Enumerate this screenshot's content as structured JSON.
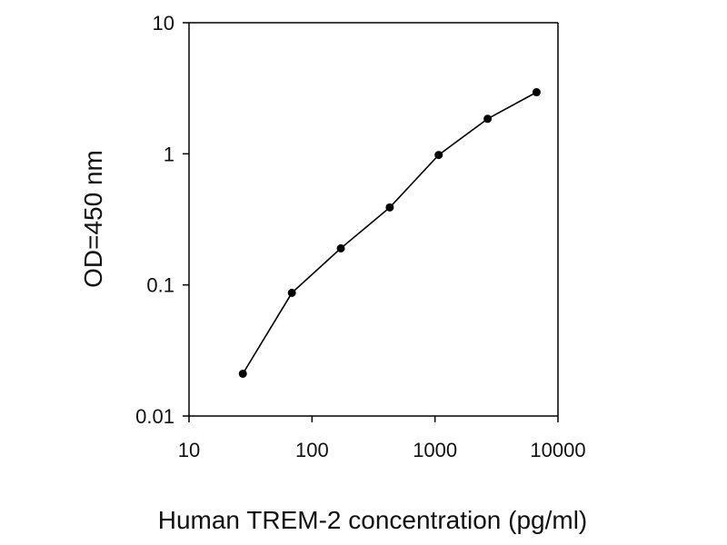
{
  "chart_data": {
    "type": "line",
    "title": "",
    "xlabel": "Human TREM-2 concentration (pg/ml)",
    "ylabel": "OD=450 nm",
    "xscale": "log",
    "yscale": "log",
    "xlim": [
      10,
      10000
    ],
    "ylim": [
      0.01,
      10
    ],
    "xticks": [
      10,
      100,
      1000,
      10000
    ],
    "xtick_labels": [
      "10",
      "100",
      "1000",
      "10000"
    ],
    "yticks": [
      0.01,
      0.1,
      1,
      10
    ],
    "ytick_labels": [
      "0.01",
      "0.1",
      "1",
      "10"
    ],
    "grid": false,
    "legend": "none",
    "colors": {
      "line": "#000000",
      "marker": "#000000",
      "axis": "#000000"
    },
    "marker": "filled-circle",
    "series": [
      {
        "x": [
          27.4,
          68.6,
          171.5,
          428.7,
          1071.8,
          2679.6,
          6699
        ],
        "values": [
          0.021,
          0.087,
          0.19,
          0.39,
          0.98,
          1.85,
          2.95
        ]
      }
    ]
  }
}
